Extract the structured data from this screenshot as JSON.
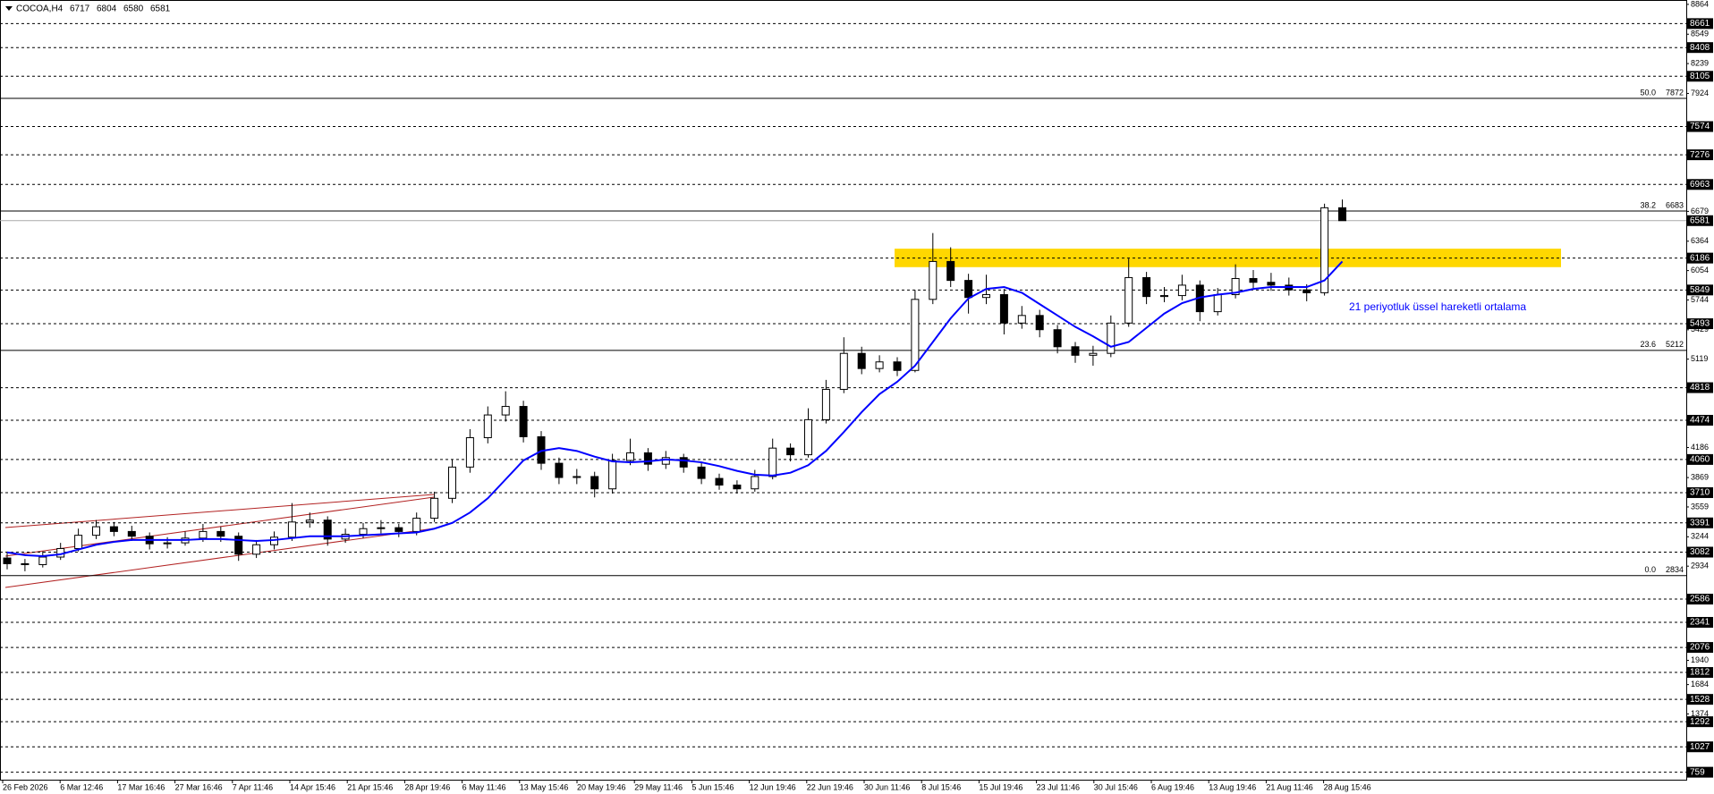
{
  "chart_data": {
    "type": "candlestick",
    "symbol": "COCOA,H4",
    "header_ohlc": [
      6717,
      6804,
      6580,
      6581
    ],
    "ylim": [
      680,
      8910
    ],
    "yticks": [
      8864,
      8549,
      8239,
      7924,
      6679,
      6364,
      6054,
      5744,
      5429,
      5119,
      4186,
      3869,
      3559,
      3244,
      2934,
      1940,
      1684,
      1374
    ],
    "levels": [
      8661,
      8408,
      8105,
      7574,
      7276,
      6963,
      6186,
      5849,
      5493,
      4818,
      4474,
      4060,
      3710,
      3391,
      3082,
      2586,
      2341,
      2076,
      1812,
      1528,
      1292,
      1027,
      759
    ],
    "price_line": 6581,
    "fib": [
      {
        "level": "50.0",
        "value": 7872
      },
      {
        "level": "38.2",
        "value": 6683
      },
      {
        "level": "23.6",
        "value": 5212
      },
      {
        "level": "0.0",
        "value": 2834
      }
    ],
    "zone": [
      6090,
      6285
    ],
    "zone_color": "#ffd700",
    "x_labels": [
      "26 Feb 2026",
      "6 Mar 12:46",
      "17 Mar 16:46",
      "27 Mar 16:46",
      "7 Apr 11:46",
      "14 Apr 15:46",
      "21 Apr 15:46",
      "28 Apr 19:46",
      "6 May 11:46",
      "13 May 15:46",
      "20 May 19:46",
      "29 May 11:46",
      "5 Jun 15:46",
      "12 Jun 19:46",
      "22 Jun 19:46",
      "30 Jun 11:46",
      "8 Jul 15:46",
      "15 Jul 19:46",
      "23 Jul 11:46",
      "30 Jul 15:46",
      "6 Aug 19:46",
      "13 Aug 19:46",
      "21 Aug 11:46",
      "28 Aug 15:46"
    ],
    "candles": [
      [
        3020,
        3080,
        2900,
        2960
      ],
      [
        2960,
        3010,
        2880,
        2950
      ],
      [
        2950,
        3090,
        2920,
        3030
      ],
      [
        3030,
        3180,
        3000,
        3120
      ],
      [
        3120,
        3330,
        3090,
        3260
      ],
      [
        3260,
        3420,
        3220,
        3350
      ],
      [
        3350,
        3400,
        3250,
        3300
      ],
      [
        3300,
        3360,
        3200,
        3250
      ],
      [
        3250,
        3290,
        3110,
        3170
      ],
      [
        3170,
        3240,
        3120,
        3180
      ],
      [
        3180,
        3300,
        3150,
        3230
      ],
      [
        3230,
        3380,
        3190,
        3300
      ],
      [
        3300,
        3350,
        3190,
        3250
      ],
      [
        3250,
        3290,
        2990,
        3060
      ],
      [
        3060,
        3210,
        3020,
        3160
      ],
      [
        3160,
        3300,
        3110,
        3240
      ],
      [
        3240,
        3600,
        3200,
        3400
      ],
      [
        3400,
        3500,
        3340,
        3420
      ],
      [
        3420,
        3460,
        3150,
        3220
      ],
      [
        3220,
        3330,
        3180,
        3270
      ],
      [
        3270,
        3390,
        3230,
        3330
      ],
      [
        3330,
        3420,
        3280,
        3340
      ],
      [
        3340,
        3380,
        3240,
        3300
      ],
      [
        3300,
        3500,
        3260,
        3440
      ],
      [
        3440,
        3720,
        3400,
        3650
      ],
      [
        3650,
        4060,
        3600,
        3980
      ],
      [
        3980,
        4380,
        3920,
        4290
      ],
      [
        4290,
        4620,
        4230,
        4530
      ],
      [
        4530,
        4780,
        4460,
        4620
      ],
      [
        4620,
        4680,
        4240,
        4300
      ],
      [
        4300,
        4360,
        3950,
        4020
      ],
      [
        4020,
        4080,
        3800,
        3870
      ],
      [
        3870,
        3960,
        3800,
        3880
      ],
      [
        3880,
        3930,
        3660,
        3750
      ],
      [
        3750,
        4120,
        3700,
        4050
      ],
      [
        4050,
        4280,
        4000,
        4130
      ],
      [
        4130,
        4180,
        3940,
        4010
      ],
      [
        4010,
        4150,
        3960,
        4080
      ],
      [
        4080,
        4120,
        3920,
        3980
      ],
      [
        3980,
        4030,
        3800,
        3860
      ],
      [
        3860,
        3910,
        3740,
        3790
      ],
      [
        3790,
        3840,
        3700,
        3750
      ],
      [
        3750,
        3950,
        3720,
        3880
      ],
      [
        3880,
        4280,
        3850,
        4180
      ],
      [
        4180,
        4230,
        4040,
        4110
      ],
      [
        4110,
        4600,
        4080,
        4480
      ],
      [
        4480,
        4900,
        4440,
        4800
      ],
      [
        4800,
        5350,
        4760,
        5180
      ],
      [
        5180,
        5250,
        4960,
        5020
      ],
      [
        5020,
        5160,
        4980,
        5090
      ],
      [
        5090,
        5140,
        4940,
        5000
      ],
      [
        5000,
        5850,
        4980,
        5750
      ],
      [
        5750,
        6450,
        5700,
        6150
      ],
      [
        6150,
        6300,
        5880,
        5950
      ],
      [
        5950,
        6020,
        5600,
        5770
      ],
      [
        5770,
        6010,
        5700,
        5800
      ],
      [
        5800,
        5860,
        5380,
        5500
      ],
      [
        5500,
        5680,
        5440,
        5580
      ],
      [
        5580,
        5640,
        5350,
        5430
      ],
      [
        5430,
        5480,
        5180,
        5250
      ],
      [
        5250,
        5300,
        5080,
        5160
      ],
      [
        5160,
        5260,
        5050,
        5180
      ],
      [
        5180,
        5580,
        5140,
        5500
      ],
      [
        5500,
        6180,
        5460,
        5980
      ],
      [
        5980,
        6040,
        5700,
        5780
      ],
      [
        5780,
        5880,
        5720,
        5790
      ],
      [
        5790,
        6010,
        5740,
        5900
      ],
      [
        5900,
        5950,
        5520,
        5620
      ],
      [
        5620,
        5870,
        5580,
        5800
      ],
      [
        5800,
        6120,
        5760,
        5970
      ],
      [
        5970,
        6060,
        5870,
        5930
      ],
      [
        5930,
        6030,
        5840,
        5900
      ],
      [
        5900,
        5980,
        5790,
        5850
      ],
      [
        5850,
        5910,
        5730,
        5820
      ],
      [
        5820,
        6760,
        5790,
        6717
      ],
      [
        6717,
        6804,
        6580,
        6581
      ]
    ],
    "ema": {
      "label": "21 periyotluk üssel hareketli ortalama",
      "color": "#0000ff",
      "values": [
        3080,
        3050,
        3040,
        3060,
        3110,
        3160,
        3190,
        3210,
        3210,
        3210,
        3210,
        3220,
        3220,
        3210,
        3200,
        3210,
        3230,
        3250,
        3250,
        3250,
        3260,
        3270,
        3280,
        3290,
        3330,
        3390,
        3500,
        3650,
        3850,
        4050,
        4150,
        4180,
        4150,
        4090,
        4040,
        4030,
        4040,
        4060,
        4050,
        4030,
        3990,
        3940,
        3900,
        3890,
        3920,
        4000,
        4150,
        4350,
        4560,
        4750,
        4880,
        5050,
        5300,
        5550,
        5760,
        5860,
        5880,
        5820,
        5700,
        5580,
        5460,
        5360,
        5250,
        5300,
        5450,
        5600,
        5710,
        5770,
        5800,
        5820,
        5860,
        5880,
        5880,
        5880,
        5950,
        6150
      ]
    }
  }
}
